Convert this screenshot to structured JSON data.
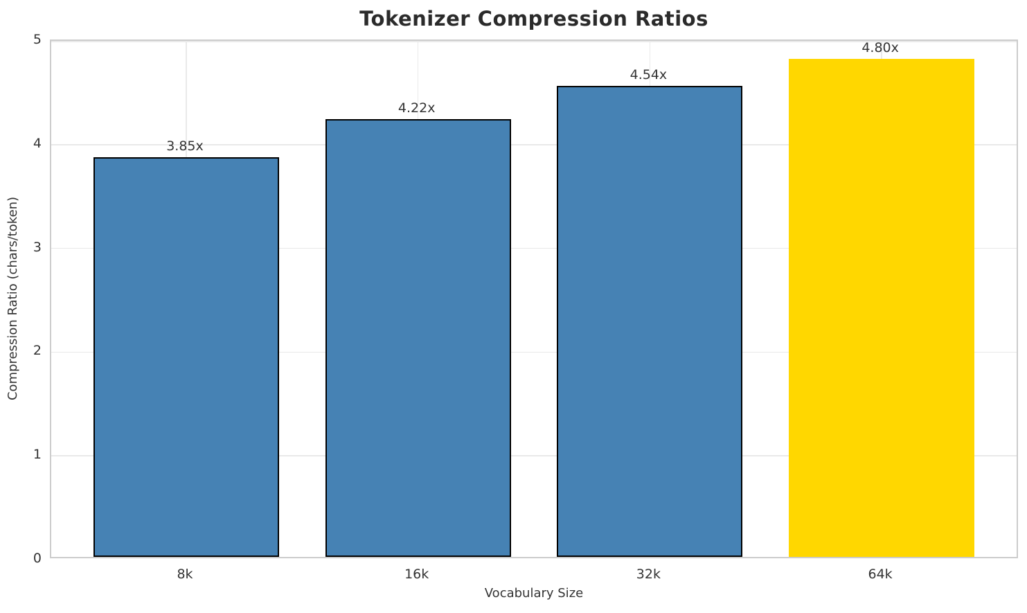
{
  "chart_data": {
    "type": "bar",
    "title": "Tokenizer Compression Ratios",
    "xlabel": "Vocabulary Size",
    "ylabel": "Compression Ratio (chars/token)",
    "categories": [
      "8k",
      "16k",
      "32k",
      "64k"
    ],
    "values": [
      3.85,
      4.22,
      4.54,
      4.8
    ],
    "bar_labels": [
      "3.85x",
      "4.22x",
      "4.54x",
      "4.80x"
    ],
    "bar_colors": [
      "#4682B4",
      "#4682B4",
      "#4682B4",
      "#FFD700"
    ],
    "bar_edge_colors": [
      "#000000",
      "#000000",
      "#000000",
      "none"
    ],
    "ylim": [
      0,
      5
    ],
    "yticks": [
      0,
      1,
      2,
      3,
      4,
      5
    ],
    "grid": true,
    "legend_position": "none",
    "highlight_category": "64k",
    "accent_color": "#4682B4",
    "highlight_color": "#FFD700"
  }
}
